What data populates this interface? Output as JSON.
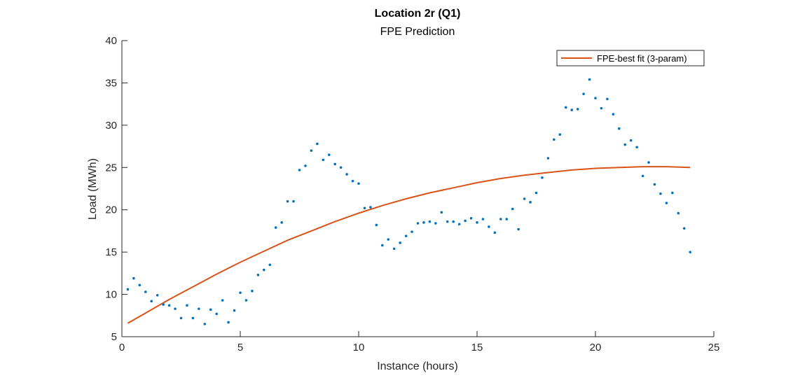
{
  "chart_data": {
    "type": "scatter",
    "title": "Location 2r (Q1)",
    "subtitle": "FPE Prediction",
    "xlabel": "Instance (hours)",
    "ylabel": "Load (MWh)",
    "xlim": [
      0,
      25
    ],
    "ylim": [
      5,
      40
    ],
    "xticks": [
      "0",
      "5",
      "10",
      "15",
      "20",
      "25"
    ],
    "yticks": [
      "5",
      "10",
      "15",
      "20",
      "25",
      "30",
      "35",
      "40"
    ],
    "grid": false,
    "legend_position": "top-right",
    "colors": {
      "points": "#0072BD",
      "fit": "#D95319",
      "axis": "#262626"
    },
    "series": [
      {
        "kind": "points",
        "x": [
          0.25,
          0.5,
          0.75,
          1.0,
          1.25,
          1.5,
          1.75,
          2.0,
          2.25,
          2.5,
          2.75,
          3.0,
          3.25,
          3.5,
          3.75,
          4.0,
          4.25,
          4.5,
          4.75,
          5.0,
          5.25,
          5.5,
          5.75,
          6.0,
          6.25,
          6.5,
          6.75,
          7.0,
          7.25,
          7.5,
          7.75,
          8.0,
          8.25,
          8.5,
          8.75,
          9.0,
          9.25,
          9.5,
          9.75,
          10.0,
          10.25,
          10.5,
          10.75,
          11.0,
          11.25,
          11.5,
          11.75,
          12.0,
          12.25,
          12.5,
          12.75,
          13.0,
          13.25,
          13.5,
          13.75,
          14.0,
          14.25,
          14.5,
          14.75,
          15.0,
          15.25,
          15.5,
          15.75,
          16.0,
          16.25,
          16.5,
          16.75,
          17.0,
          17.25,
          17.5,
          17.75,
          18.0,
          18.25,
          18.5,
          18.75,
          19.0,
          19.25,
          19.5,
          19.75,
          20.0,
          20.25,
          20.5,
          20.75,
          21.0,
          21.25,
          21.5,
          21.75,
          22.0,
          22.25,
          22.5,
          22.75,
          23.0,
          23.25,
          23.5,
          23.75,
          24.0
        ],
        "y": [
          10.6,
          11.9,
          11.1,
          10.3,
          9.2,
          9.9,
          8.8,
          8.7,
          8.3,
          7.2,
          8.7,
          7.2,
          8.3,
          6.5,
          8.2,
          7.7,
          9.3,
          6.7,
          8.1,
          10.2,
          9.3,
          10.4,
          12.3,
          12.9,
          13.5,
          17.9,
          18.5,
          21.0,
          21.0,
          24.7,
          25.2,
          27.0,
          27.8,
          25.9,
          26.5,
          25.4,
          25.0,
          24.2,
          23.4,
          23.1,
          20.2,
          20.3,
          18.2,
          15.8,
          16.5,
          15.4,
          16.1,
          16.9,
          17.4,
          18.4,
          18.5,
          18.6,
          18.4,
          19.7,
          18.6,
          18.6,
          18.3,
          18.7,
          19.0,
          18.5,
          18.9,
          18.0,
          17.3,
          18.9,
          18.9,
          20.1,
          17.7,
          21.3,
          20.9,
          22.0,
          23.8,
          26.1,
          28.3,
          28.9,
          32.1,
          31.8,
          31.9,
          33.7,
          35.4,
          33.2,
          32.0,
          33.1,
          31.3,
          29.6,
          27.7,
          28.2,
          27.4,
          24.0,
          25.6,
          23.0,
          21.9,
          20.8,
          22.0,
          19.6,
          17.8,
          15.0
        ]
      },
      {
        "kind": "line",
        "name": "FPE-best fit (3-param)",
        "x": [
          0.25,
          1,
          2,
          3,
          4,
          5,
          6,
          7,
          8,
          9,
          10,
          11,
          12,
          13,
          14,
          15,
          16,
          17,
          18,
          19,
          20,
          21,
          22,
          23,
          24
        ],
        "y": [
          6.6,
          7.8,
          9.4,
          10.9,
          12.4,
          13.8,
          15.1,
          16.4,
          17.5,
          18.6,
          19.6,
          20.5,
          21.3,
          22.0,
          22.6,
          23.2,
          23.7,
          24.1,
          24.4,
          24.7,
          24.9,
          25.0,
          25.1,
          25.1,
          25.0
        ]
      }
    ]
  }
}
